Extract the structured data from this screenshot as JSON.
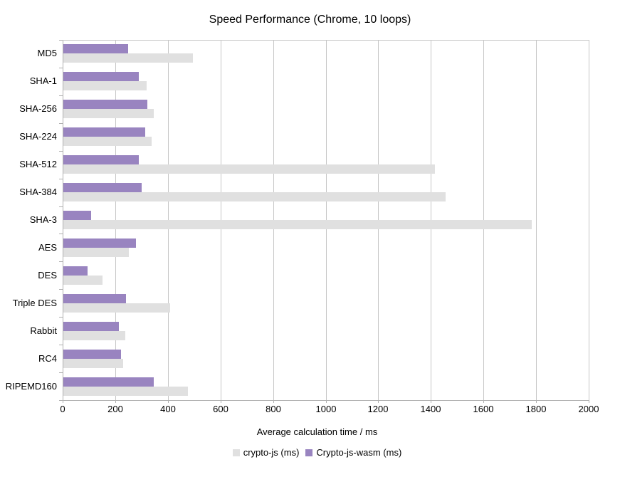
{
  "title": "Speed Performance (Chrome, 10 loops)",
  "colors": {
    "background": "#ffffff",
    "axis_line": "#b0b0b0",
    "grid_line": "#c6c6c6",
    "text": "#000000",
    "crypto_js_bar": "#e0e0e0",
    "crypto_js_wasm_bar": "#9984c0"
  },
  "chart_data": {
    "type": "bar",
    "orientation": "horizontal",
    "title": "Speed Performance (Chrome, 10 loops)",
    "xlabel": "Average calculation time / ms",
    "ylabel": "",
    "xlim": [
      0,
      2000
    ],
    "xtick_step": 200,
    "grid": true,
    "legend_position": "bottom",
    "categories": [
      "MD5",
      "SHA-1",
      "SHA-256",
      "SHA-224",
      "SHA-512",
      "SHA-384",
      "SHA-3",
      "AES",
      "DES",
      "Triple DES",
      "Rabbit",
      "RC4",
      "RIPEMD160"
    ],
    "series": [
      {
        "name": "crypto-js (ms)",
        "color": "#e0e0e0",
        "values": [
          492,
          317,
          344,
          335,
          1414,
          1454,
          1781,
          249,
          148,
          407,
          235,
          228,
          473
        ]
      },
      {
        "name": "Crypto-js-wasm (ms)",
        "color": "#9984c0",
        "values": [
          246,
          288,
          320,
          310,
          288,
          298,
          105,
          276,
          93,
          237,
          211,
          219,
          344
        ]
      }
    ]
  }
}
